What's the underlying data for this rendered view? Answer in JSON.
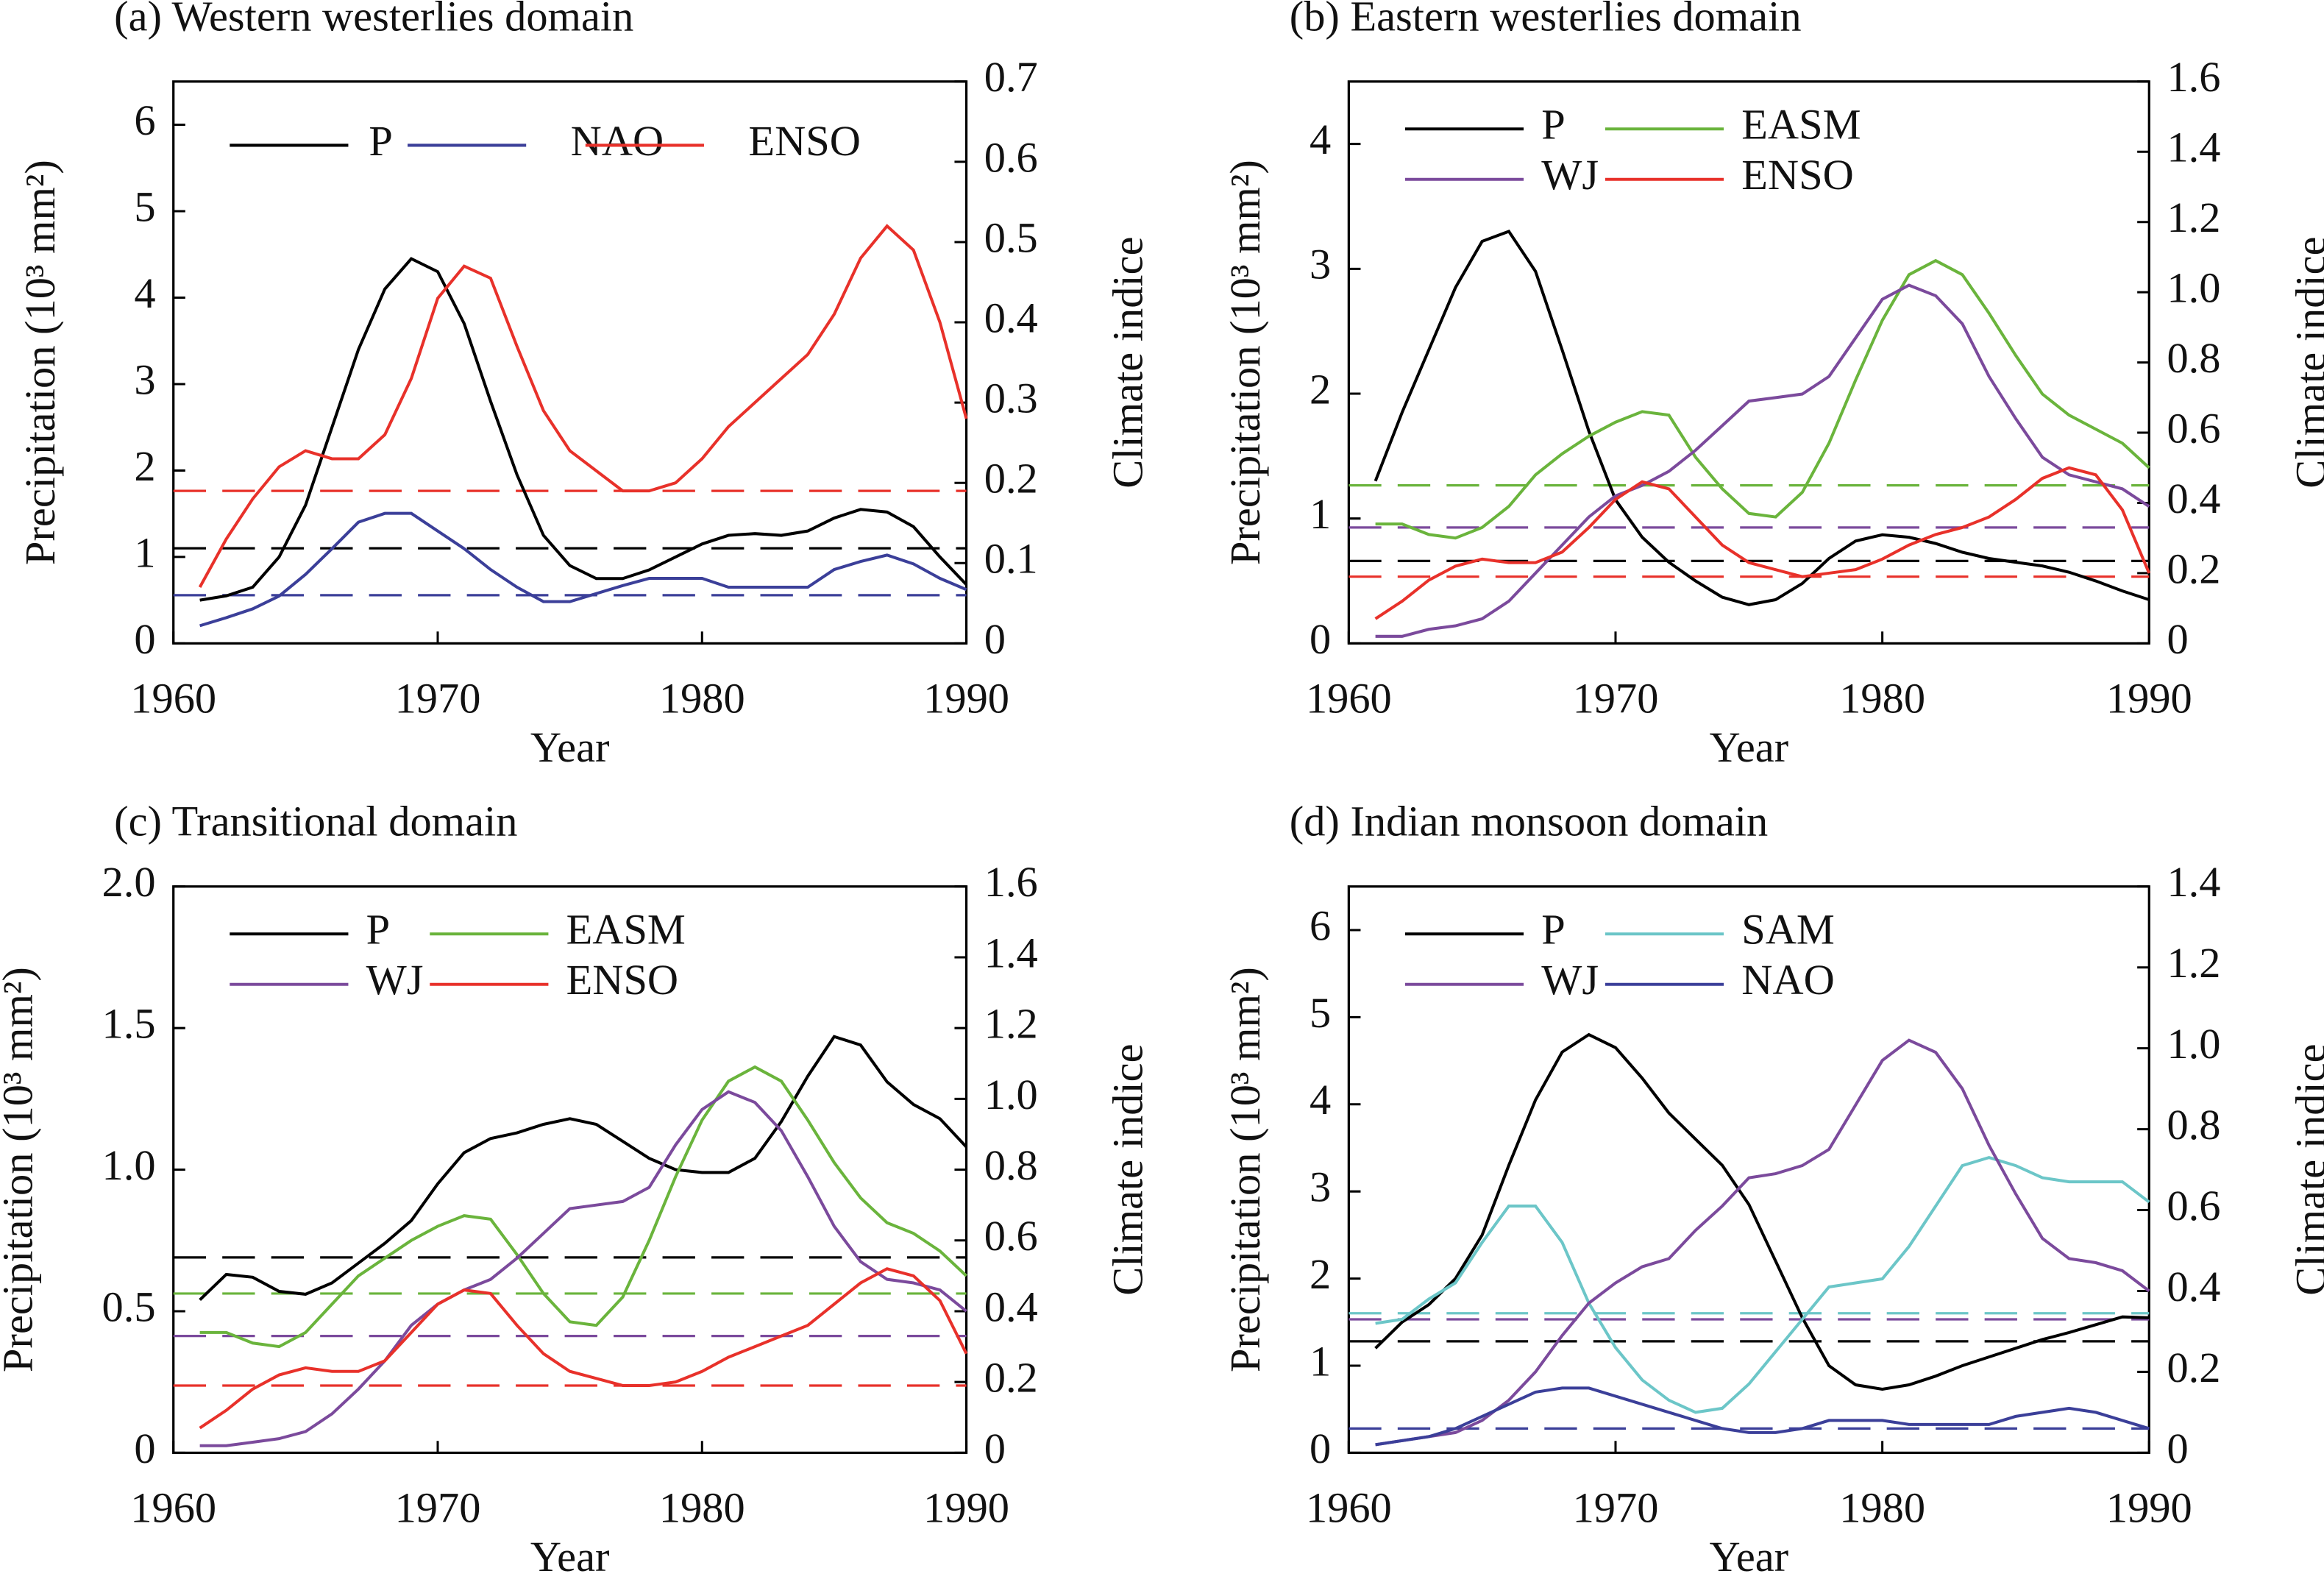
{
  "chart_data": [
    {
      "type": "line",
      "title": "(a) Western westerlies domain",
      "xlabel": "Year",
      "ylabel": "Precipitation (10³ mm²)",
      "y2label": "Climate indice",
      "x": [
        1961,
        1962,
        1963,
        1964,
        1965,
        1966,
        1967,
        1968,
        1969,
        1970,
        1971,
        1972,
        1973,
        1974,
        1975,
        1976,
        1977,
        1978,
        1979,
        1980,
        1981,
        1982,
        1983,
        1984,
        1985,
        1986,
        1987,
        1988,
        1989,
        1990
      ],
      "xlim": [
        1960,
        1990
      ],
      "xticks": [
        1960,
        1970,
        1980,
        1990
      ],
      "ylim": [
        0,
        6.5
      ],
      "yticks": [
        0,
        1,
        2,
        3,
        4,
        5,
        6
      ],
      "y2lim": [
        0,
        0.7
      ],
      "y2ticks": [
        0,
        0.1,
        0.2,
        0.3,
        0.4,
        0.5,
        0.6,
        0.7
      ],
      "series": [
        {
          "name": "P",
          "color": "#000000",
          "values": [
            0.5,
            0.55,
            0.65,
            1.0,
            1.6,
            2.5,
            3.4,
            4.1,
            4.45,
            4.3,
            3.7,
            2.8,
            1.95,
            1.25,
            0.9,
            0.75,
            0.75,
            0.85,
            1.0,
            1.15,
            1.25,
            1.27,
            1.25,
            1.3,
            1.45,
            1.55,
            1.52,
            1.35,
            1.0,
            0.68
          ]
        },
        {
          "name": "NAO",
          "color": "#3b3f99",
          "axis": "y2",
          "values": [
            0.022,
            0.032,
            0.043,
            0.059,
            0.086,
            0.118,
            0.151,
            0.162,
            0.162,
            0.14,
            0.118,
            0.092,
            0.07,
            0.052,
            0.052,
            0.062,
            0.072,
            0.081,
            0.081,
            0.081,
            0.07,
            0.07,
            0.07,
            0.07,
            0.092,
            0.102,
            0.11,
            0.099,
            0.081,
            0.067
          ]
        },
        {
          "name": "ENSO",
          "color": "#e8312a",
          "axis": "y2",
          "values": [
            0.07,
            0.13,
            0.18,
            0.22,
            0.24,
            0.23,
            0.23,
            0.26,
            0.33,
            0.43,
            0.47,
            0.455,
            0.37,
            0.29,
            0.24,
            0.215,
            0.19,
            0.19,
            0.2,
            0.23,
            0.27,
            0.3,
            0.33,
            0.36,
            0.41,
            0.48,
            0.52,
            0.49,
            0.4,
            0.28
          ]
        }
      ],
      "reference_lines": [
        {
          "color": "#000000",
          "value": 1.1
        },
        {
          "color": "#3b3f99",
          "axis": "y2",
          "value": 0.06
        },
        {
          "color": "#e8312a",
          "axis": "y2",
          "value": 0.19
        }
      ]
    },
    {
      "type": "line",
      "title": "(b) Eastern westerlies domain",
      "xlabel": "Year",
      "ylabel": "Precipitation (10³ mm²)",
      "y2label": "Climate indice",
      "x": [
        1961,
        1962,
        1963,
        1964,
        1965,
        1966,
        1967,
        1968,
        1969,
        1970,
        1971,
        1972,
        1973,
        1974,
        1975,
        1976,
        1977,
        1978,
        1979,
        1980,
        1981,
        1982,
        1983,
        1984,
        1985,
        1986,
        1987,
        1988,
        1989,
        1990
      ],
      "xlim": [
        1960,
        1990
      ],
      "xticks": [
        1960,
        1970,
        1980,
        1990
      ],
      "ylim": [
        0,
        4.5
      ],
      "yticks": [
        0,
        1,
        2,
        3,
        4
      ],
      "y2lim": [
        0,
        1.6
      ],
      "y2ticks": [
        0,
        0.2,
        0.4,
        0.6,
        0.8,
        {
          "value": 1,
          "label": "1.0"
        },
        1.2,
        1.4,
        1.6
      ],
      "series": [
        {
          "name": "P",
          "color": "#000000",
          "values": [
            1.3,
            1.85,
            2.35,
            2.85,
            3.22,
            3.3,
            2.98,
            2.35,
            1.7,
            1.15,
            0.85,
            0.65,
            0.5,
            0.37,
            0.31,
            0.35,
            0.48,
            0.68,
            0.82,
            0.87,
            0.85,
            0.8,
            0.73,
            0.68,
            0.65,
            0.62,
            0.57,
            0.5,
            0.42,
            0.35
          ]
        },
        {
          "name": "EASM",
          "color": "#6ab43c",
          "axis": "y2",
          "values": [
            0.34,
            0.34,
            0.31,
            0.3,
            0.33,
            0.39,
            0.48,
            0.54,
            0.59,
            0.63,
            0.66,
            0.65,
            0.53,
            0.44,
            0.37,
            0.36,
            0.43,
            0.57,
            0.75,
            0.92,
            1.05,
            1.09,
            1.05,
            0.94,
            0.82,
            0.71,
            0.65,
            0.61,
            0.57,
            0.5
          ]
        },
        {
          "name": "WJ",
          "color": "#7b4a9c",
          "axis": "y2",
          "values": [
            0.02,
            0.02,
            0.04,
            0.05,
            0.07,
            0.12,
            0.2,
            0.28,
            0.36,
            0.42,
            0.45,
            0.49,
            0.55,
            0.62,
            0.69,
            0.7,
            0.71,
            0.76,
            0.87,
            0.98,
            1.02,
            0.99,
            0.91,
            0.76,
            0.64,
            0.53,
            0.48,
            0.46,
            0.44,
            0.39
          ]
        },
        {
          "name": "ENSO",
          "color": "#e8312a",
          "axis": "y2",
          "values": [
            0.07,
            0.12,
            0.18,
            0.22,
            0.24,
            0.23,
            0.23,
            0.26,
            0.33,
            0.41,
            0.46,
            0.44,
            0.36,
            0.28,
            0.23,
            0.21,
            0.19,
            0.2,
            0.21,
            0.24,
            0.28,
            0.31,
            0.33,
            0.36,
            0.41,
            0.47,
            0.5,
            0.48,
            0.38,
            0.2
          ]
        }
      ],
      "reference_lines": [
        {
          "color": "#000000",
          "value": 0.66
        },
        {
          "color": "#6ab43c",
          "axis": "y2",
          "value": 0.45
        },
        {
          "color": "#7b4a9c",
          "axis": "y2",
          "value": 0.33
        },
        {
          "color": "#e8312a",
          "axis": "y2",
          "value": 0.19
        }
      ]
    },
    {
      "type": "line",
      "title": "(c) Transitional domain",
      "xlabel": "Year",
      "ylabel": "Precipitation (10³ mm²)",
      "y2label": "Climate indice",
      "x": [
        1961,
        1962,
        1963,
        1964,
        1965,
        1966,
        1967,
        1968,
        1969,
        1970,
        1971,
        1972,
        1973,
        1974,
        1975,
        1976,
        1977,
        1978,
        1979,
        1980,
        1981,
        1982,
        1983,
        1984,
        1985,
        1986,
        1987,
        1988,
        1989,
        1990
      ],
      "xlim": [
        1960,
        1990
      ],
      "xticks": [
        1960,
        1970,
        1980,
        1990
      ],
      "ylim": [
        0,
        2
      ],
      "yticks": [
        0,
        0.5,
        {
          "value": 1,
          "label": "1.0"
        },
        1.5,
        {
          "value": 2,
          "label": "2.0"
        }
      ],
      "y2lim": [
        0,
        1.6
      ],
      "y2ticks": [
        0,
        0.2,
        0.4,
        0.6,
        0.8,
        {
          "value": 1,
          "label": "1.0"
        },
        1.2,
        1.4,
        1.6
      ],
      "series": [
        {
          "name": "P",
          "color": "#000000",
          "values": [
            0.54,
            0.63,
            0.62,
            0.57,
            0.56,
            0.6,
            0.67,
            0.74,
            0.82,
            0.95,
            1.06,
            1.11,
            1.13,
            1.16,
            1.18,
            1.16,
            1.1,
            1.04,
            1.0,
            0.99,
            0.99,
            1.04,
            1.17,
            1.33,
            1.47,
            1.44,
            1.31,
            1.23,
            1.18,
            1.08
          ]
        },
        {
          "name": "EASM",
          "color": "#6ab43c",
          "axis": "y2",
          "values": [
            0.34,
            0.34,
            0.31,
            0.3,
            0.34,
            0.42,
            0.5,
            0.55,
            0.6,
            0.64,
            0.67,
            0.66,
            0.56,
            0.45,
            0.37,
            0.36,
            0.44,
            0.6,
            0.78,
            0.94,
            1.05,
            1.09,
            1.05,
            0.94,
            0.82,
            0.72,
            0.65,
            0.62,
            0.57,
            0.5
          ]
        },
        {
          "name": "WJ",
          "color": "#7b4a9c",
          "axis": "y2",
          "values": [
            0.02,
            0.02,
            0.03,
            0.04,
            0.06,
            0.11,
            0.18,
            0.26,
            0.36,
            0.42,
            0.46,
            0.49,
            0.55,
            0.62,
            0.69,
            0.7,
            0.71,
            0.75,
            0.87,
            0.97,
            1.02,
            0.99,
            0.91,
            0.78,
            0.64,
            0.54,
            0.49,
            0.48,
            0.46,
            0.4
          ]
        },
        {
          "name": "ENSO",
          "color": "#e8312a",
          "axis": "y2",
          "values": [
            0.07,
            0.12,
            0.18,
            0.22,
            0.24,
            0.23,
            0.23,
            0.26,
            0.34,
            0.42,
            0.46,
            0.45,
            0.36,
            0.28,
            0.23,
            0.21,
            0.19,
            0.19,
            0.2,
            0.23,
            0.27,
            0.3,
            0.33,
            0.36,
            0.42,
            0.48,
            0.52,
            0.5,
            0.43,
            0.28
          ]
        }
      ],
      "reference_lines": [
        {
          "color": "#000000",
          "value": 0.69
        },
        {
          "color": "#6ab43c",
          "axis": "y2",
          "value": 0.45
        },
        {
          "color": "#7b4a9c",
          "axis": "y2",
          "value": 0.33
        },
        {
          "color": "#e8312a",
          "axis": "y2",
          "value": 0.19
        }
      ]
    },
    {
      "type": "line",
      "title": "(d) Indian monsoon domain",
      "xlabel": "Year",
      "ylabel": "Precipitation (10³ mm²)",
      "y2label": "Climate indice",
      "x": [
        1961,
        1962,
        1963,
        1964,
        1965,
        1966,
        1967,
        1968,
        1969,
        1970,
        1971,
        1972,
        1973,
        1974,
        1975,
        1976,
        1977,
        1978,
        1979,
        1980,
        1981,
        1982,
        1983,
        1984,
        1985,
        1986,
        1987,
        1988,
        1989,
        1990
      ],
      "xlim": [
        1960,
        1990
      ],
      "xticks": [
        1960,
        1970,
        1980,
        1990
      ],
      "ylim": [
        0,
        6.5
      ],
      "yticks": [
        0,
        1,
        2,
        3,
        4,
        5,
        6
      ],
      "y2lim": [
        0,
        1.4
      ],
      "y2ticks": [
        0,
        0.2,
        0.4,
        0.6,
        0.8,
        {
          "value": 1,
          "label": "1.0"
        },
        1.2,
        1.4
      ],
      "series": [
        {
          "name": "P",
          "color": "#000000",
          "values": [
            1.2,
            1.5,
            1.7,
            2.0,
            2.5,
            3.3,
            4.05,
            4.6,
            4.8,
            4.65,
            4.3,
            3.9,
            3.6,
            3.3,
            2.85,
            2.2,
            1.55,
            1.0,
            0.78,
            0.73,
            0.78,
            0.88,
            1.0,
            1.1,
            1.2,
            1.3,
            1.38,
            1.47,
            1.56,
            1.55
          ]
        },
        {
          "name": "SAM",
          "color": "#6cc6c8",
          "axis": "y2",
          "values": [
            0.32,
            0.33,
            0.38,
            0.42,
            0.52,
            0.61,
            0.61,
            0.52,
            0.37,
            0.26,
            0.18,
            0.13,
            0.1,
            0.11,
            0.17,
            0.25,
            0.33,
            0.41,
            0.42,
            0.43,
            0.51,
            0.61,
            0.71,
            0.73,
            0.71,
            0.68,
            0.67,
            0.67,
            0.67,
            0.62
          ]
        },
        {
          "name": "WJ",
          "color": "#7b4a9c",
          "axis": "y2",
          "values": [
            0.02,
            0.03,
            0.04,
            0.05,
            0.08,
            0.13,
            0.2,
            0.29,
            0.37,
            0.42,
            0.46,
            0.48,
            0.55,
            0.61,
            0.68,
            0.69,
            0.71,
            0.75,
            0.86,
            0.97,
            1.02,
            0.99,
            0.9,
            0.76,
            0.64,
            0.53,
            0.48,
            0.47,
            0.45,
            0.4
          ]
        },
        {
          "name": "NAO",
          "color": "#3b3f99",
          "axis": "y2",
          "values": [
            0.02,
            0.03,
            0.04,
            0.06,
            0.09,
            0.12,
            0.15,
            0.16,
            0.16,
            0.14,
            0.12,
            0.1,
            0.08,
            0.06,
            0.05,
            0.05,
            0.06,
            0.08,
            0.08,
            0.08,
            0.07,
            0.07,
            0.07,
            0.07,
            0.09,
            0.1,
            0.11,
            0.1,
            0.08,
            0.06
          ]
        }
      ],
      "reference_lines": [
        {
          "color": "#000000",
          "value": 1.28
        },
        {
          "color": "#6cc6c8",
          "axis": "y2",
          "value": 0.345
        },
        {
          "color": "#7b4a9c",
          "axis": "y2",
          "value": 0.33
        },
        {
          "color": "#3b3f99",
          "axis": "y2",
          "value": 0.06
        }
      ]
    }
  ]
}
